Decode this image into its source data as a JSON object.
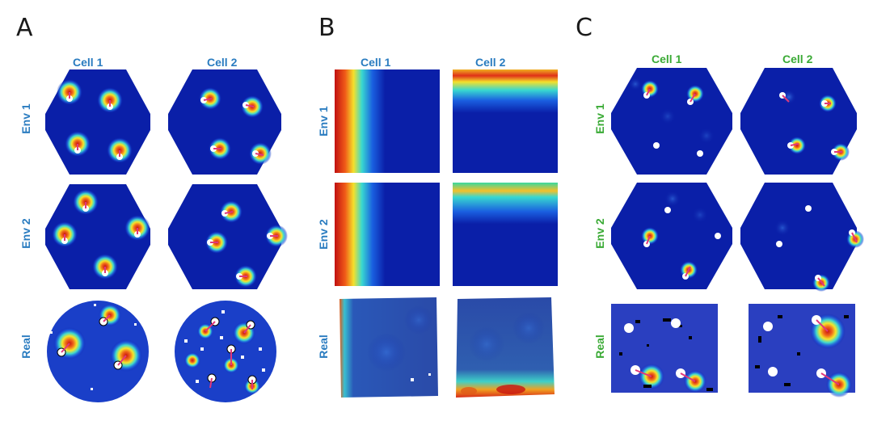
{
  "panels": [
    {
      "letter": "A",
      "cols": [
        "Cell 1",
        "Cell 2"
      ],
      "rows": [
        "Env 1",
        "Env 2",
        "Real"
      ],
      "label_color": "#2a7cc0"
    },
    {
      "letter": "B",
      "cols": [
        "Cell 1",
        "Cell 2"
      ],
      "rows": [
        "Env 1",
        "Env 2",
        "Real"
      ],
      "label_color": "#2a7cc0"
    },
    {
      "letter": "C",
      "cols": [
        "Cell 1",
        "Cell 2"
      ],
      "rows": [
        "Env 1",
        "Env 2",
        "Real"
      ],
      "label_color": "#3aaa35"
    }
  ],
  "colors": {
    "map_background": "#0a1fa8",
    "hot": "#e0281a",
    "warm": "#f5e52a",
    "cool": "#2fd4e0",
    "marker": "#ffffff",
    "vector": "#e0387a"
  }
}
